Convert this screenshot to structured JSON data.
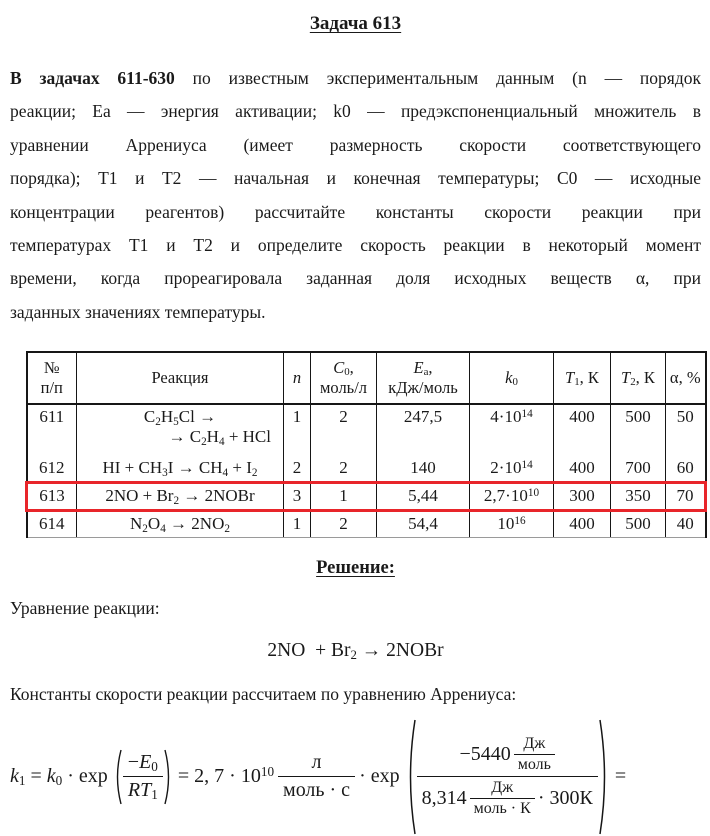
{
  "colors": {
    "highlight_red": "#e8252a",
    "ink": "#1a1a1a"
  },
  "title": "Задача 613",
  "intro": {
    "line1_bold": "В задачах 611-630",
    "line1_rest": "по известным экспериментальным данным (n — порядок",
    "lines": [
      "реакции; Ea — энергия активации; k0 — предэкспоненциальный множитель в",
      "уравнении Аррениуса (имеет размерность скорости соответствующего",
      "порядка); T1 и T2 — начальная и конечная температуры; C0 — исходные",
      "концентрации реагентов) рассчитайте константы скорости реакции при",
      "температурах T1 и T2 и определите скорость реакции в некоторый момент",
      "времени, когда прореагировала заданная доля исходных веществ α, при",
      "заданных значениях температуры."
    ]
  },
  "table": {
    "headers": {
      "num": "№<br>п/п",
      "reaction": "Реакция",
      "n": "<i>n</i>",
      "c0": "<i>C</i><sub>0</sub>,<br>моль/л",
      "ea": "<i>E</i><sub>a</sub>,<br>кДж/моль",
      "k0": "<i>k</i><sub>0</sub>",
      "t1": "<i>T</i><sub>1</sub>, К",
      "t2": "<i>T</i><sub>2</sub>, К",
      "alpha": "α, %"
    },
    "rows": [
      {
        "num": "611",
        "reaction_line1": "C<sub>2</sub>H<sub>5</sub>Cl →",
        "reaction_line2": "→ C<sub>2</sub>H<sub>4</sub> + HCl",
        "n": "1",
        "c0": "2",
        "ea": "247,5",
        "k0": "4·10<sup>14</sup>",
        "t1": "400",
        "t2": "500",
        "alpha": "50"
      },
      {
        "num": "612",
        "reaction": "HI + CH<sub>3</sub>I → CH<sub>4</sub> + I<sub>2</sub>",
        "n": "2",
        "c0": "2",
        "ea": "140",
        "k0": "2·10<sup>14</sup>",
        "t1": "400",
        "t2": "700",
        "alpha": "60"
      },
      {
        "num": "613",
        "reaction": "2NO + Br<sub>2</sub> → 2NOBr",
        "n": "3",
        "c0": "1",
        "ea": "5,44",
        "k0": "2,7·10<sup>10</sup>",
        "t1": "300",
        "t2": "350",
        "alpha": "70",
        "highlighted": true
      },
      {
        "num": "614",
        "reaction": "N<sub>2</sub>O<sub>4</sub> → 2NO<sub>2</sub>",
        "n": "1",
        "c0": "2",
        "ea": "54,4",
        "k0": "10<sup>16</sup>",
        "t1": "400",
        "t2": "500",
        "alpha": "40"
      }
    ]
  },
  "solution": {
    "heading": "Решение:",
    "equation_label": "Уравнение реакции:",
    "equation": "2NO&nbsp; + Br<sub>2</sub> → 2NOBr",
    "arrhenius_label": "Константы скорости реакции рассчитаем по уравнению Аррениуса:",
    "formula": {
      "lhs": "<i>k</i><sub>1</sub> = <i>k</i><sub>0</sub> · exp",
      "exp1_num": "−<i>E</i><sub>0</sub>",
      "exp1_den": "<i>RT</i><sub>1</sub>",
      "mid": "= 2, 7 · 10<sup>10</sup>",
      "unit_num": "л",
      "unit_den": "моль · с",
      "exp2_prefix": "· exp",
      "big_num_value": "−5440",
      "big_num_unit_num": "Дж",
      "big_num_unit_den": "моль",
      "big_den_value": "8,314",
      "big_den_unit_num": "Дж",
      "big_den_unit_den": "моль · К",
      "big_den_suffix": "· 300К",
      "tail": "="
    }
  }
}
